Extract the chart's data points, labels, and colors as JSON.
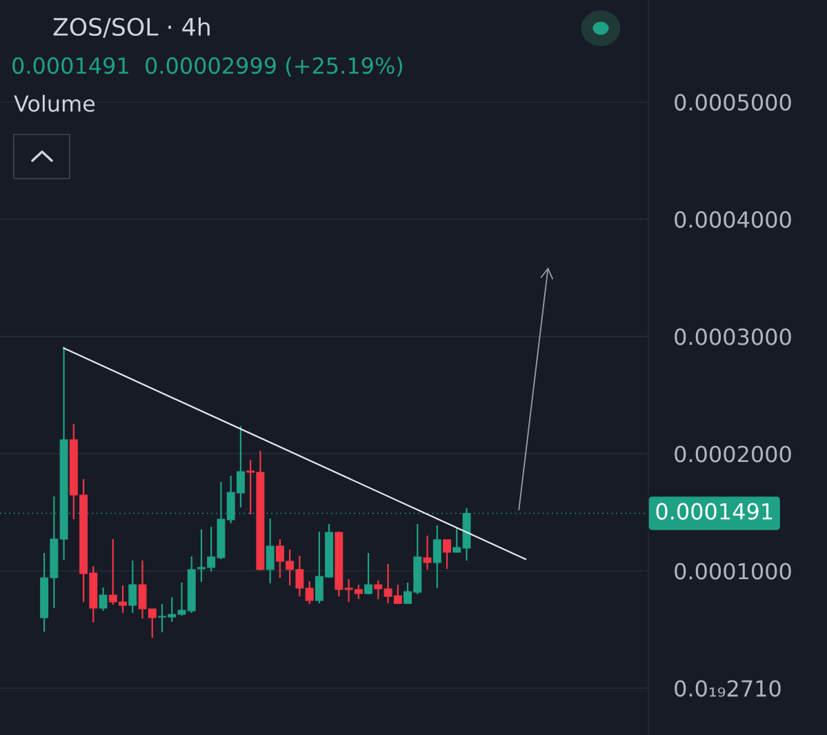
{
  "chart_data": {
    "type": "candlestick",
    "title": "ZOS/SOL · 4h",
    "subtitle": "0.0001491  0.00002999 (+25.19%)",
    "annotations": [
      "Volume"
    ],
    "categories": [
      null,
      null,
      null,
      null,
      null,
      null,
      null,
      null,
      null,
      null,
      null,
      null,
      null,
      null,
      null,
      null,
      null,
      null,
      null,
      null,
      null,
      null,
      null,
      null,
      null,
      null,
      null,
      null,
      null,
      null,
      null,
      null,
      null,
      null,
      null,
      null,
      null,
      null,
      null,
      null,
      null,
      null,
      null,
      null,
      null,
      null,
      null,
      null,
      null,
      null,
      null,
      null,
      null,
      null,
      null,
      null,
      null,
      null,
      null,
      null,
      null,
      null,
      null,
      null,
      null,
      null
    ],
    "ohlc": [
      null,
      null,
      null,
      null,
      [
        6e-05,
        0.0001153,
        4.82e-05,
        9.41e-05
      ],
      [
        9.41e-05,
        0.0001635,
        6.82e-05,
        0.0001271
      ],
      [
        0.0001271,
        0.0002912,
        0.0001094,
        0.0002118
      ],
      [
        0.0002118,
        0.0002253,
        0.0001441,
        0.0001647
      ],
      [
        0.0001647,
        0.0001782,
        7.35e-05,
        9.76e-05
      ],
      [
        9.82e-05,
        0.0001041,
        5.59e-05,
        6.82e-05
      ],
      [
        6.82e-05,
        8.59e-05,
        6.59e-05,
        7.94e-05
      ],
      [
        7.94e-05,
        0.0001271,
        7.12e-05,
        7.35e-05
      ],
      [
        7.35e-05,
        8.76e-05,
        6.41e-05,
        7.06e-05
      ],
      [
        7.06e-05,
        0.0001088,
        6.41e-05,
        8.82e-05
      ],
      [
        8.82e-05,
        0.0001088,
        5.94e-05,
        6.76e-05
      ],
      [
        6.76e-05,
        6.76e-05,
        4.29e-05,
        6e-05
      ],
      [
        6.06e-05,
        7.18e-05,
        4.76e-05,
        6.12e-05
      ],
      [
        6.06e-05,
        7.76e-05,
        5.65e-05,
        6.29e-05
      ],
      [
        6.29e-05,
        9e-05,
        6.18e-05,
        6.65e-05
      ],
      [
        6.59e-05,
        0.0001123,
        6.41e-05,
        0.0001012
      ],
      [
        0.0001018,
        0.0001353,
        9.06e-05,
        0.0001029
      ],
      [
        0.0001029,
        0.0001376,
        9.94e-05,
        0.0001118
      ],
      [
        0.0001112,
        0.0001759,
        0.00011,
        0.0001441
      ],
      [
        0.0001435,
        0.0001812,
        0.0001406,
        0.000167
      ],
      [
        0.0001665,
        0.0002235,
        0.0001541,
        0.0001847
      ],
      [
        0.0001853,
        0.0001947,
        0.0001482,
        0.0001841
      ],
      [
        0.0001841,
        0.0002023,
        0.0001006,
        0.0001012
      ],
      [
        0.0001012,
        0.0001447,
        8.94e-05,
        0.0001212
      ],
      [
        0.0001212,
        0.0001271,
        9.41e-05,
        0.0001082
      ],
      [
        0.0001082,
        0.0001182,
        8.76e-05,
        0.0001012
      ],
      [
        0.0001012,
        0.0001129,
        7.82e-05,
        8.53e-05
      ],
      [
        8.53e-05,
        9.12e-05,
        7.18e-05,
        7.47e-05
      ],
      [
        7.47e-05,
        0.0001335,
        7.23e-05,
        9.53e-05
      ],
      [
        9.47e-05,
        0.00014,
        9.41e-05,
        0.0001329
      ],
      [
        0.0001329,
        0.0001335,
        7.82e-05,
        8.41e-05
      ],
      [
        8.53e-05,
        9.29e-05,
        7.35e-05,
        8.41e-05
      ],
      [
        8.41e-05,
        8.82e-05,
        7.59e-05,
        8.06e-05
      ],
      [
        8.06e-05,
        0.0001153,
        8e-05,
        8.82e-05
      ],
      [
        8.82e-05,
        9.18e-05,
        7.59e-05,
        8.47e-05
      ],
      [
        8.47e-05,
        0.0001059,
        7.23e-05,
        7.82e-05
      ],
      [
        7.88e-05,
        8.82e-05,
        7.18e-05,
        7.23e-05
      ],
      [
        7.23e-05,
        9e-05,
        7.18e-05,
        8.23e-05
      ],
      [
        8.18e-05,
        0.00014,
        8e-05,
        0.0001118
      ],
      [
        0.0001112,
        0.00013,
        0.0001012,
        0.0001071
      ],
      [
        0.0001071,
        0.0001388,
        8.53e-05,
        0.0001265
      ],
      [
        0.0001265,
        0.0001265,
        0.0001018,
        0.0001159
      ],
      [
        0.0001159,
        0.0001365,
        0.0001159,
        0.00012
      ],
      [
        0.0001194,
        0.0001535,
        0.0001088,
        0.0001491
      ],
      null,
      null,
      null,
      null,
      null,
      null,
      null,
      null,
      null,
      null,
      null,
      null,
      null,
      null,
      null,
      null,
      null,
      null
    ],
    "colors": [
      null,
      null,
      null,
      null,
      "#1ea185",
      "#1ea185",
      "#1ea185",
      "#f23645",
      "#f23645",
      "#f23645",
      "#1ea185",
      "#f23645",
      "#f23645",
      "#1ea185",
      "#f23645",
      "#f23645",
      "#1ea185",
      "#1ea185",
      "#1ea185",
      "#1ea185",
      "#1ea185",
      "#1ea185",
      "#1ea185",
      "#1ea185",
      "#1ea185",
      "#f23645",
      "#f23645",
      "#1ea185",
      "#f23645",
      "#f23645",
      "#f23645",
      "#f23645",
      "#1ea185",
      "#1ea185",
      "#f23645",
      "#f23645",
      "#f23645",
      "#1ea185",
      "#f23645",
      "#f23645",
      "#f23645",
      "#1ea185",
      "#1ea185",
      "#f23645",
      "#1ea185",
      "#f23645",
      "#1ea185",
      "#1ea185",
      null,
      null,
      null,
      null,
      null,
      null,
      null,
      null,
      null,
      null,
      null,
      null,
      null,
      null,
      null,
      null,
      null,
      null
    ],
    "series": [
      {
        "type": "line",
        "values": [
          null,
          null,
          null,
          null,
          null,
          null,
          0.00029,
          null,
          null,
          null,
          null,
          null,
          null,
          null,
          null,
          null,
          null,
          null,
          null,
          null,
          null,
          null,
          null,
          null,
          null,
          null,
          null,
          null,
          null,
          null,
          null,
          null,
          null,
          null,
          null,
          null,
          null,
          null,
          null,
          null,
          null,
          null,
          null,
          null,
          null,
          null,
          null,
          null,
          null,
          null,
          null,
          null,
          null,
          0.00011,
          null,
          null,
          null,
          null,
          null,
          null,
          null,
          null,
          null,
          null,
          null,
          null
        ],
        "color": "#e6e8ee"
      }
    ],
    "ylim": [
      -4e-05,
      0.000587
    ],
    "yticks": [
      {
        "value": 2.71e-23,
        "label": "0.0₁₉2710"
      },
      {
        "value": 0.0001,
        "label": "0.0001000"
      },
      {
        "value": 0.0002,
        "label": "0.0002000"
      },
      {
        "value": 0.0003,
        "label": "0.0003000"
      },
      {
        "value": 0.0004,
        "label": "0.0004000"
      },
      {
        "value": 0.0005,
        "label": "0.0005000"
      }
    ],
    "ref_lines": [
      {
        "axis": "y",
        "value": 0.0001491,
        "label": "0.0001491",
        "color": "#1ea185",
        "line_style": "dotted"
      }
    ],
    "grid": "y"
  }
}
